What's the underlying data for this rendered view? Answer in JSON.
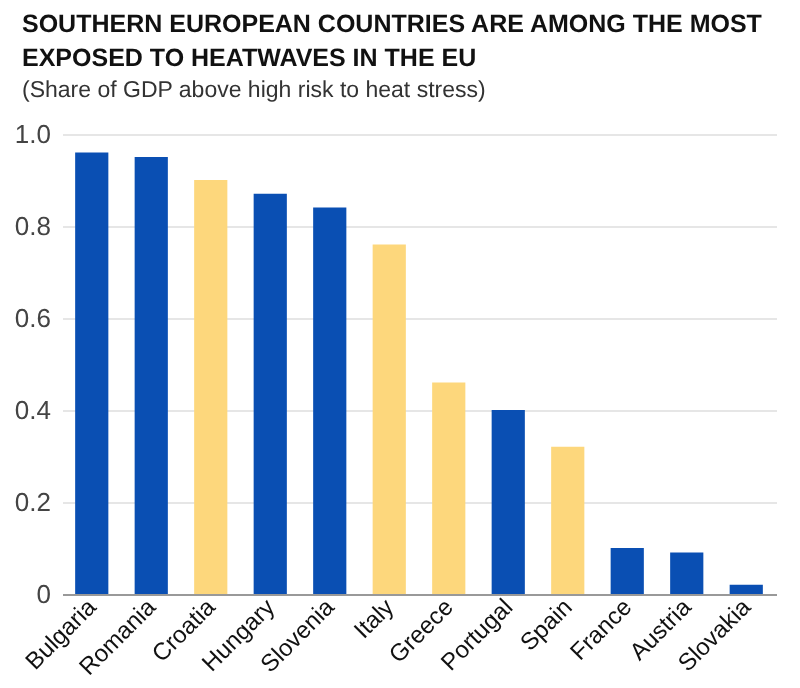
{
  "chart_data": {
    "type": "bar",
    "title": "SOUTHERN EUROPEAN COUNTRIES ARE AMONG THE MOST EXPOSED TO HEATWAVES IN THE EU",
    "subtitle": "(Share of GDP above high risk to heat stress)",
    "categories": [
      "Bulgaria",
      "Romania",
      "Croatia",
      "Hungary",
      "Slovenia",
      "Italy",
      "Greece",
      "Portugal",
      "Spain",
      "France",
      "Austria",
      "Slovakia"
    ],
    "values": [
      0.96,
      0.95,
      0.9,
      0.87,
      0.84,
      0.76,
      0.46,
      0.4,
      0.32,
      0.1,
      0.09,
      0.02
    ],
    "colors": [
      "#0a4fb3",
      "#0a4fb3",
      "#fdd77c",
      "#0a4fb3",
      "#0a4fb3",
      "#fdd77c",
      "#fdd77c",
      "#0a4fb3",
      "#fdd77c",
      "#0a4fb3",
      "#0a4fb3",
      "#0a4fb3"
    ],
    "ylim": [
      0,
      1.0
    ],
    "yticks": [
      0,
      0.2,
      0.4,
      0.6,
      0.8,
      {
        "value": 1,
        "label": "1.0"
      }
    ],
    "grid": "y"
  }
}
